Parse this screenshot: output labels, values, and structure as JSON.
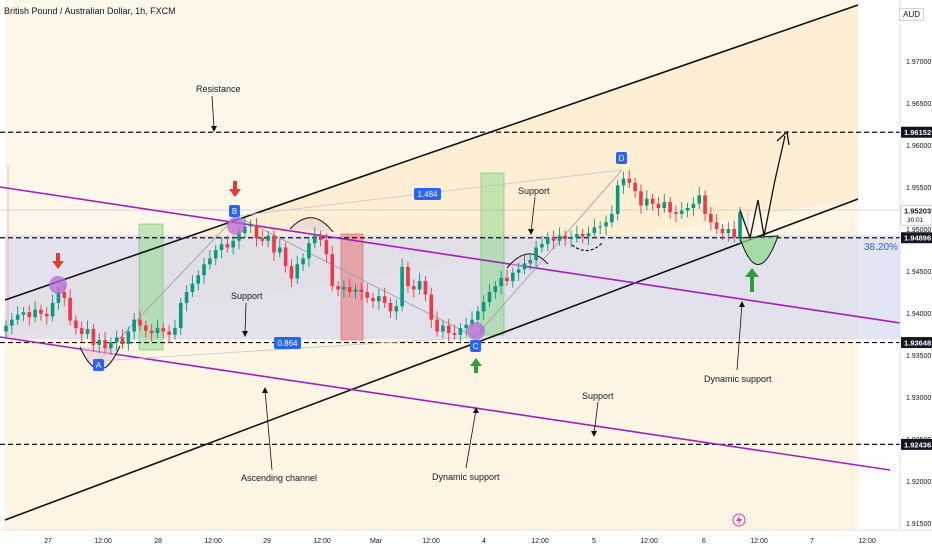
{
  "header": {
    "title": "British Pound / Australian Dollar, 1h, FXCM"
  },
  "currency": "AUD",
  "chart_data": {
    "type": "candlestick",
    "title": "British Pound / Australian Dollar, 1h, FXCM",
    "ylim": [
      1.9125,
      1.9825
    ],
    "y_ticks": [
      1.915,
      1.92,
      1.925,
      1.93,
      1.935,
      1.94,
      1.945,
      1.95,
      1.955,
      1.96,
      1.965,
      1.97
    ],
    "x_ticks": [
      "27",
      "12:00",
      "28",
      "12:00",
      "29",
      "12:00",
      "Mar",
      "12:00",
      "4",
      "12:00",
      "5",
      "12:00",
      "6",
      "12:00",
      "7",
      "12:00"
    ],
    "price_labels": [
      {
        "value": 1.96152,
        "label": "1.96152",
        "style": "dark"
      },
      {
        "value": 1.952,
        "label": "1.95203",
        "sub": "30:01",
        "style": "light"
      },
      {
        "value": 1.94896,
        "label": "1.94896",
        "style": "dark"
      },
      {
        "value": 1.93648,
        "label": "1.93648",
        "style": "dark"
      },
      {
        "value": 1.92436,
        "label": "1.92436",
        "style": "dark"
      }
    ],
    "horizontal_levels": [
      1.96152,
      1.94896,
      1.93648,
      1.92436
    ],
    "fib_label": "38.20%",
    "series_close": [
      1.9385,
      1.9392,
      1.9398,
      1.9401,
      1.9395,
      1.9404,
      1.9399,
      1.9396,
      1.9412,
      1.9425,
      1.9418,
      1.9391,
      1.9382,
      1.9375,
      1.9381,
      1.9362,
      1.9368,
      1.9358,
      1.9365,
      1.9371,
      1.9363,
      1.9378,
      1.9392,
      1.9385,
      1.9379,
      1.9376,
      1.9382,
      1.9378,
      1.9374,
      1.9382,
      1.9412,
      1.9425,
      1.9435,
      1.9445,
      1.9458,
      1.9465,
      1.9475,
      1.9482,
      1.9478,
      1.9486,
      1.9495,
      1.9503,
      1.9505,
      1.9489,
      1.9486,
      1.9492,
      1.9472,
      1.9478,
      1.9456,
      1.9441,
      1.9458,
      1.9465,
      1.9483,
      1.9492,
      1.9487,
      1.947,
      1.9432,
      1.9428,
      1.9431,
      1.9425,
      1.9428,
      1.9425,
      1.9418,
      1.9414,
      1.942,
      1.9412,
      1.9402,
      1.9408,
      1.9455,
      1.9432,
      1.9428,
      1.9438,
      1.9422,
      1.9392,
      1.9378,
      1.9385,
      1.9376,
      1.9374,
      1.9382,
      1.9386,
      1.9392,
      1.9402,
      1.9413,
      1.9425,
      1.9432,
      1.9442,
      1.9438,
      1.9448,
      1.9452,
      1.9459,
      1.9463,
      1.9478,
      1.9482,
      1.949,
      1.9486,
      1.9492,
      1.9488,
      1.949,
      1.9494,
      1.9491,
      1.9495,
      1.9502,
      1.9503,
      1.9508,
      1.9518,
      1.9552,
      1.956,
      1.9555,
      1.9545,
      1.9528,
      1.9536,
      1.953,
      1.9525,
      1.9532,
      1.952,
      1.9518,
      1.9522,
      1.9525,
      1.953,
      1.954,
      1.9518,
      1.9508,
      1.95,
      1.9495,
      1.95,
      1.949,
      1.952
    ]
  },
  "annotations": {
    "resistance": "Resistance",
    "support_top": "Support",
    "support_mid": "Support",
    "support_right": "Support",
    "dynamic_support_bottom": "Dynamic support",
    "dynamic_support_right": "Dynamic support",
    "ascending_channel": "Ascending channel",
    "range_upper": "1.484",
    "range_lower": "0.864",
    "point_a": "A",
    "point_b": "B",
    "point_c": "C",
    "point_d": "D"
  },
  "colors": {
    "up": "#089981",
    "down": "#f23645",
    "channel_fill": "#fde8c4",
    "range_fill": "#dcdcf0",
    "purple_line": "#9c27b0",
    "label_blue": "#2962ff"
  }
}
